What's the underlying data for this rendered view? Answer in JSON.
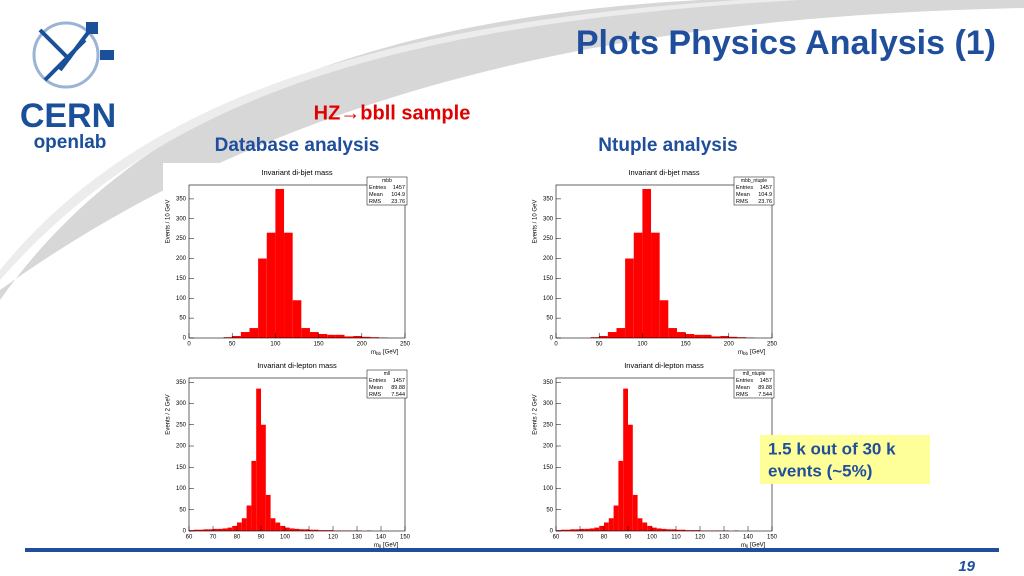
{
  "slide": {
    "title": "Plots Physics Analysis (1)",
    "subtitle": "HZ→bbll sample",
    "left_heading": "Database analysis",
    "right_heading": "Ntuple analysis",
    "note": [
      "1.5 k out of 30 k",
      "events (~5%)"
    ],
    "page": "19",
    "logo": {
      "name": "CERN",
      "sub": "openlab"
    }
  },
  "chart_data": [
    {
      "type": "histogram",
      "title": "Invariant di-bjet mass",
      "ylabel": "Events / 10 GeV",
      "xlabel": "m",
      "xlabel_sub": "bb",
      "xlabel_unit": "[GeV]",
      "color": "#ff0000",
      "bins": [
        0,
        10,
        20,
        30,
        40,
        50,
        60,
        70,
        80,
        90,
        100,
        110,
        120,
        130,
        140,
        150,
        160,
        170,
        180,
        190,
        200,
        210,
        220,
        230,
        240,
        250
      ],
      "values": [
        0,
        0,
        0,
        0,
        2,
        5,
        15,
        25,
        200,
        265,
        375,
        265,
        95,
        25,
        15,
        10,
        8,
        8,
        4,
        5,
        3,
        2,
        1,
        0,
        0
      ],
      "xlim": [
        0,
        250
      ],
      "ylim": [
        0,
        385
      ],
      "xticks": [
        0,
        50,
        100,
        150,
        200,
        250
      ],
      "yticks": [
        0,
        50,
        100,
        150,
        200,
        250,
        300,
        350
      ],
      "stats": {
        "name": "mbb",
        "rows": [
          [
            "Entries",
            1457
          ],
          [
            "Mean",
            104.9
          ],
          [
            "RMS",
            23.76
          ]
        ]
      }
    },
    {
      "type": "histogram",
      "title": "Invariant di-bjet mass",
      "ylabel": "Events / 10 GeV",
      "xlabel": "m",
      "xlabel_sub": "bb",
      "xlabel_unit": "[GeV]",
      "color": "#ff0000",
      "bins": [
        0,
        10,
        20,
        30,
        40,
        50,
        60,
        70,
        80,
        90,
        100,
        110,
        120,
        130,
        140,
        150,
        160,
        170,
        180,
        190,
        200,
        210,
        220,
        230,
        240,
        250
      ],
      "values": [
        0,
        0,
        0,
        0,
        2,
        5,
        15,
        25,
        200,
        265,
        375,
        265,
        95,
        25,
        15,
        10,
        8,
        8,
        4,
        5,
        3,
        2,
        1,
        0,
        0
      ],
      "xlim": [
        0,
        250
      ],
      "ylim": [
        0,
        385
      ],
      "xticks": [
        0,
        50,
        100,
        150,
        200,
        250
      ],
      "yticks": [
        0,
        50,
        100,
        150,
        200,
        250,
        300,
        350
      ],
      "stats": {
        "name": "mbb_ntuple",
        "rows": [
          [
            "Entries",
            1457
          ],
          [
            "Mean",
            104.9
          ],
          [
            "RMS",
            23.76
          ]
        ]
      }
    },
    {
      "type": "histogram",
      "title": "Invariant di-lepton mass",
      "ylabel": "Events / 2 GeV",
      "xlabel": "m",
      "xlabel_sub": "ll",
      "xlabel_unit": "[GeV]",
      "color": "#ff0000",
      "bins": [
        60,
        62,
        64,
        66,
        68,
        70,
        72,
        74,
        76,
        78,
        80,
        82,
        84,
        86,
        88,
        90,
        92,
        94,
        96,
        98,
        100,
        102,
        104,
        106,
        108,
        110,
        112,
        114,
        116,
        118,
        120,
        122,
        124,
        126,
        128,
        130,
        132,
        134,
        136,
        138,
        140,
        142,
        144,
        146,
        148,
        150
      ],
      "values": [
        2,
        3,
        3,
        4,
        4,
        5,
        5,
        6,
        8,
        12,
        20,
        30,
        60,
        165,
        335,
        250,
        85,
        30,
        20,
        12,
        8,
        6,
        5,
        4,
        4,
        3,
        3,
        2,
        2,
        2,
        1,
        1,
        1,
        1,
        1,
        1,
        0,
        1,
        0,
        0,
        0,
        0,
        0,
        0,
        0
      ],
      "xlim": [
        60,
        150
      ],
      "ylim": [
        0,
        360
      ],
      "xticks": [
        60,
        70,
        80,
        90,
        100,
        110,
        120,
        130,
        140,
        150
      ],
      "yticks": [
        0,
        50,
        100,
        150,
        200,
        250,
        300,
        350
      ],
      "stats": {
        "name": "mll",
        "rows": [
          [
            "Entries",
            1457
          ],
          [
            "Mean",
            89.88
          ],
          [
            "RMS",
            7.544
          ]
        ]
      }
    },
    {
      "type": "histogram",
      "title": "Invariant di-lepton mass",
      "ylabel": "Events / 2 GeV",
      "xlabel": "m",
      "xlabel_sub": "ll",
      "xlabel_unit": "[GeV]",
      "color": "#ff0000",
      "bins": [
        60,
        62,
        64,
        66,
        68,
        70,
        72,
        74,
        76,
        78,
        80,
        82,
        84,
        86,
        88,
        90,
        92,
        94,
        96,
        98,
        100,
        102,
        104,
        106,
        108,
        110,
        112,
        114,
        116,
        118,
        120,
        122,
        124,
        126,
        128,
        130,
        132,
        134,
        136,
        138,
        140,
        142,
        144,
        146,
        148,
        150
      ],
      "values": [
        2,
        3,
        3,
        4,
        4,
        5,
        5,
        6,
        8,
        12,
        20,
        30,
        60,
        165,
        335,
        250,
        85,
        30,
        20,
        12,
        8,
        6,
        5,
        4,
        4,
        3,
        3,
        2,
        2,
        2,
        1,
        1,
        1,
        1,
        1,
        1,
        0,
        1,
        0,
        0,
        0,
        0,
        0,
        0,
        0
      ],
      "xlim": [
        60,
        150
      ],
      "ylim": [
        0,
        360
      ],
      "xticks": [
        60,
        70,
        80,
        90,
        100,
        110,
        120,
        130,
        140,
        150
      ],
      "yticks": [
        0,
        50,
        100,
        150,
        200,
        250,
        300,
        350
      ],
      "stats": {
        "name": "mll_ntuple",
        "rows": [
          [
            "Entries",
            1457
          ],
          [
            "Mean",
            89.88
          ],
          [
            "RMS",
            7.544
          ]
        ]
      }
    }
  ]
}
